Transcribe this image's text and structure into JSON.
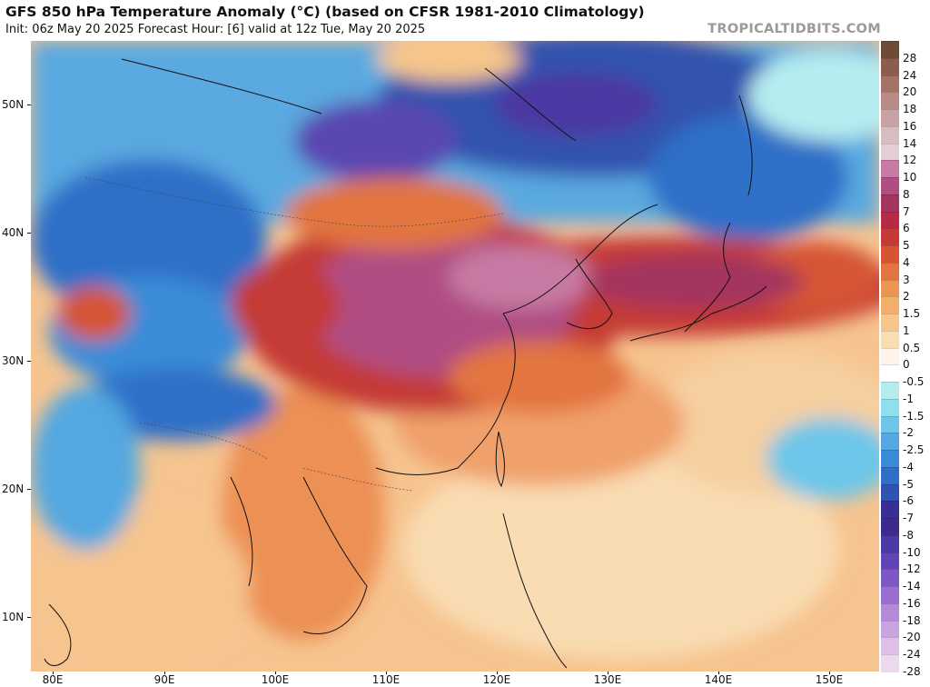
{
  "header": {
    "title": "GFS 850 hPa Temperature Anomaly (°C) (based on CFSR 1981-2010 Climatology)",
    "subtitle": "Init: 06z May 20 2025   Forecast Hour: [6]   valid at 12z Tue, May 20 2025",
    "brand": "TROPICALTIDBITS.COM"
  },
  "map": {
    "lon_range": [
      78,
      156
    ],
    "lat_range": [
      5,
      55
    ],
    "lat_labels": [
      "50N",
      "40N",
      "30N",
      "20N",
      "10N"
    ],
    "lat_values": [
      50,
      40,
      30,
      20,
      10
    ],
    "lon_labels": [
      "80E",
      "90E",
      "100E",
      "110E",
      "120E",
      "130E",
      "140E",
      "150E"
    ],
    "lon_values": [
      80,
      90,
      100,
      110,
      120,
      130,
      140,
      150
    ]
  },
  "colorbar": {
    "labels": [
      "28",
      "24",
      "20",
      "18",
      "16",
      "14",
      "12",
      "10",
      "8",
      "7",
      "6",
      "5",
      "4",
      "3",
      "2",
      "1.5",
      "1",
      "0.5",
      "0",
      "-0.5",
      "-1",
      "-1.5",
      "-2",
      "-2.5",
      "-4",
      "-5",
      "-6",
      "-7",
      "-8",
      "-10",
      "-12",
      "-14",
      "-16",
      "-18",
      "-20",
      "-24",
      "-28"
    ],
    "colors": [
      "#6e4a36",
      "#8a5d4d",
      "#a47267",
      "#b98a86",
      "#c7a3a6",
      "#d7bcc2",
      "#e4cfd7",
      "#c77aa3",
      "#b04d83",
      "#a3345f",
      "#b62a43",
      "#c53a34",
      "#d55434",
      "#e2753f",
      "#ec9552",
      "#f2b06c",
      "#f6c68a",
      "#f9ddb3",
      "#fff3ea",
      "#ffffff",
      "#b6ecef",
      "#8ee1ec",
      "#6dc6e9",
      "#53a8e1",
      "#3a8cd8",
      "#2f6fc8",
      "#3152ae",
      "#372f94",
      "#3d2a8b",
      "#4b38a2",
      "#6143b7",
      "#7e57c6",
      "#9a6ed0",
      "#b38ad8",
      "#c9a5df",
      "#dcc0e6",
      "#ecd9ee"
    ]
  },
  "legend_cells": [
    {
      "name": "c28"
    },
    {
      "name": "c24"
    }
  ]
}
